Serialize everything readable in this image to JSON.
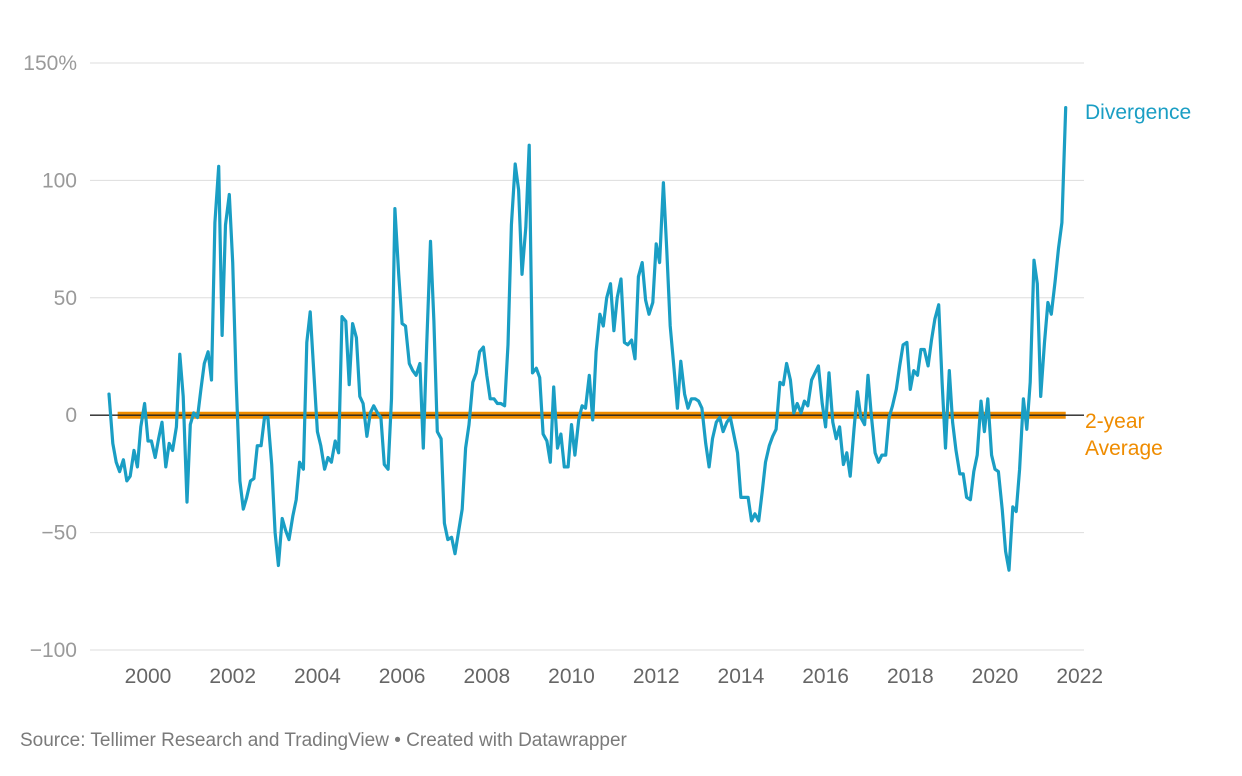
{
  "source_note": "Source: Tellimer Research and TradingView • Created with Datawrapper",
  "colors": {
    "divergence": "#1a9ec4",
    "average": "#ef8c00",
    "grid": "#dddddd",
    "zero": "#222222"
  },
  "chart_data": {
    "type": "line",
    "ylim": [
      -100,
      150
    ],
    "xlim": [
      1999.0,
      2022.0
    ],
    "y_ticks": [
      {
        "value": 150,
        "label": "150%"
      },
      {
        "value": 100,
        "label": "100"
      },
      {
        "value": 50,
        "label": "50"
      },
      {
        "value": 0,
        "label": "0"
      },
      {
        "value": -50,
        "label": "−50"
      },
      {
        "value": -100,
        "label": "−100"
      }
    ],
    "x_ticks": [
      "2000",
      "2002",
      "2004",
      "2006",
      "2008",
      "2010",
      "2012",
      "2014",
      "2016",
      "2018",
      "2020",
      "2022"
    ],
    "grid": true,
    "series": [
      {
        "name": "Divergence",
        "label_lines": [
          "Divergence"
        ],
        "x": [
          1999.08,
          1999.17,
          1999.25,
          1999.33,
          1999.42,
          1999.5,
          1999.58,
          1999.67,
          1999.75,
          1999.83,
          1999.92,
          2000.0,
          2000.08,
          2000.17,
          2000.25,
          2000.33,
          2000.42,
          2000.5,
          2000.58,
          2000.67,
          2000.75,
          2000.83,
          2000.92,
          2001.0,
          2001.08,
          2001.17,
          2001.25,
          2001.33,
          2001.42,
          2001.5,
          2001.58,
          2001.67,
          2001.75,
          2001.83,
          2001.92,
          2002.0,
          2002.08,
          2002.17,
          2002.25,
          2002.33,
          2002.42,
          2002.5,
          2002.58,
          2002.67,
          2002.75,
          2002.83,
          2002.92,
          2003.0,
          2003.08,
          2003.17,
          2003.25,
          2003.33,
          2003.42,
          2003.5,
          2003.58,
          2003.67,
          2003.75,
          2003.83,
          2003.92,
          2004.0,
          2004.08,
          2004.17,
          2004.25,
          2004.33,
          2004.42,
          2004.5,
          2004.58,
          2004.67,
          2004.75,
          2004.83,
          2004.92,
          2005.0,
          2005.08,
          2005.17,
          2005.25,
          2005.33,
          2005.42,
          2005.5,
          2005.58,
          2005.67,
          2005.75,
          2005.83,
          2005.92,
          2006.0,
          2006.08,
          2006.17,
          2006.25,
          2006.33,
          2006.42,
          2006.5,
          2006.58,
          2006.67,
          2006.75,
          2006.83,
          2006.92,
          2007.0,
          2007.08,
          2007.17,
          2007.25,
          2007.33,
          2007.42,
          2007.5,
          2007.58,
          2007.67,
          2007.75,
          2007.83,
          2007.92,
          2008.0,
          2008.08,
          2008.17,
          2008.25,
          2008.33,
          2008.42,
          2008.5,
          2008.58,
          2008.67,
          2008.75,
          2008.83,
          2008.92,
          2009.0,
          2009.08,
          2009.17,
          2009.25,
          2009.33,
          2009.42,
          2009.5,
          2009.58,
          2009.67,
          2009.75,
          2009.83,
          2009.92,
          2010.0,
          2010.08,
          2010.17,
          2010.25,
          2010.33,
          2010.42,
          2010.5,
          2010.58,
          2010.67,
          2010.75,
          2010.83,
          2010.92,
          2011.0,
          2011.08,
          2011.17,
          2011.25,
          2011.33,
          2011.42,
          2011.5,
          2011.58,
          2011.67,
          2011.75,
          2011.83,
          2011.92,
          2012.0,
          2012.08,
          2012.17,
          2012.25,
          2012.33,
          2012.42,
          2012.5,
          2012.58,
          2012.67,
          2012.75,
          2012.83,
          2012.92,
          2013.0,
          2013.08,
          2013.17,
          2013.25,
          2013.33,
          2013.42,
          2013.5,
          2013.58,
          2013.67,
          2013.75,
          2013.83,
          2013.92,
          2014.0,
          2014.08,
          2014.17,
          2014.25,
          2014.33,
          2014.42,
          2014.5,
          2014.58,
          2014.67,
          2014.75,
          2014.83,
          2014.92,
          2015.0,
          2015.08,
          2015.17,
          2015.25,
          2015.33,
          2015.42,
          2015.5,
          2015.58,
          2015.67,
          2015.75,
          2015.83,
          2015.92,
          2016.0,
          2016.08,
          2016.17,
          2016.25,
          2016.33,
          2016.42,
          2016.5,
          2016.58,
          2016.67,
          2016.75,
          2016.83,
          2016.92,
          2017.0,
          2017.08,
          2017.17,
          2017.25,
          2017.33,
          2017.42,
          2017.5,
          2017.58,
          2017.67,
          2017.75,
          2017.83,
          2017.92,
          2018.0,
          2018.08,
          2018.17,
          2018.25,
          2018.33,
          2018.42,
          2018.5,
          2018.58,
          2018.67,
          2018.75,
          2018.83,
          2018.92,
          2019.0,
          2019.08,
          2019.17,
          2019.25,
          2019.33,
          2019.42,
          2019.5,
          2019.58,
          2019.67,
          2019.75,
          2019.83,
          2019.92,
          2020.0,
          2020.08,
          2020.17,
          2020.25,
          2020.33,
          2020.42,
          2020.5,
          2020.58,
          2020.67,
          2020.75,
          2020.83,
          2020.92,
          2021.0,
          2021.08,
          2021.17,
          2021.25,
          2021.33,
          2021.42,
          2021.5,
          2021.58,
          2021.67
        ],
        "values": [
          9,
          -12,
          -20,
          -24,
          -19,
          -28,
          -26,
          -15,
          -22,
          -5,
          5,
          -11,
          -11,
          -18,
          -10,
          -3,
          -22,
          -12,
          -15,
          -5,
          26,
          8,
          -37,
          -4,
          1,
          -1,
          11,
          22,
          27,
          15,
          82,
          106,
          34,
          81,
          94,
          65,
          15,
          -28,
          -40,
          -35,
          -28,
          -27,
          -13,
          -13,
          -1,
          -1,
          -21,
          -50,
          -64,
          -44,
          -49,
          -53,
          -43,
          -36,
          -20,
          -23,
          31,
          44,
          17,
          -7,
          -13,
          -23,
          -18,
          -20,
          -11,
          -16,
          42,
          40,
          13,
          39,
          33,
          8,
          5,
          -9,
          1,
          4,
          1,
          -1,
          -21,
          -23,
          7,
          88,
          60,
          39,
          38,
          22,
          19,
          17,
          22,
          -14,
          30,
          74,
          40,
          -7,
          -10,
          -46,
          -53,
          -52,
          -59,
          -50,
          -40,
          -14,
          -4,
          14,
          18,
          27,
          29,
          17,
          7,
          7,
          5,
          5,
          4,
          30,
          81,
          107,
          96,
          60,
          80,
          115,
          18,
          20,
          16,
          -8,
          -11,
          -20,
          12,
          -14,
          -8,
          -22,
          -22,
          -4,
          -17,
          -2,
          4,
          3,
          17,
          -2,
          27,
          43,
          38,
          50,
          56,
          36,
          50,
          58,
          31,
          30,
          32,
          24,
          59,
          65,
          49,
          43,
          48,
          73,
          65,
          99,
          70,
          38,
          20,
          3,
          23,
          9,
          3,
          7,
          7,
          6,
          3,
          -12,
          -22,
          -10,
          -3,
          -1,
          -7,
          -3,
          -1,
          -8,
          -16,
          -35,
          -35,
          -35,
          -45,
          -42,
          -45,
          -33,
          -20,
          -13,
          -9,
          -6,
          14,
          13,
          22,
          15,
          1,
          5,
          1,
          6,
          4,
          15,
          18,
          21,
          5,
          -5,
          18,
          -3,
          -10,
          -5,
          -21,
          -16,
          -26,
          -6,
          10,
          -1,
          -4,
          17,
          0,
          -16,
          -20,
          -17,
          -17,
          -1,
          4,
          11,
          21,
          30,
          31,
          11,
          19,
          17,
          28,
          28,
          21,
          32,
          41,
          47,
          14,
          -14,
          19,
          -3,
          -15,
          -25,
          -25,
          -35,
          -36,
          -24,
          -17,
          6,
          -7,
          7,
          -17,
          -23,
          -24,
          -40,
          -58,
          -66,
          -39,
          -41,
          -23,
          7,
          -6,
          14,
          66,
          56,
          8,
          31,
          48,
          43,
          57,
          71,
          82,
          131
        ]
      },
      {
        "name": "2-year Average",
        "label_lines": [
          "2-year",
          "Average"
        ],
        "x": [
          1999.0,
          2021.67
        ],
        "values": [
          0,
          0
        ]
      }
    ]
  }
}
